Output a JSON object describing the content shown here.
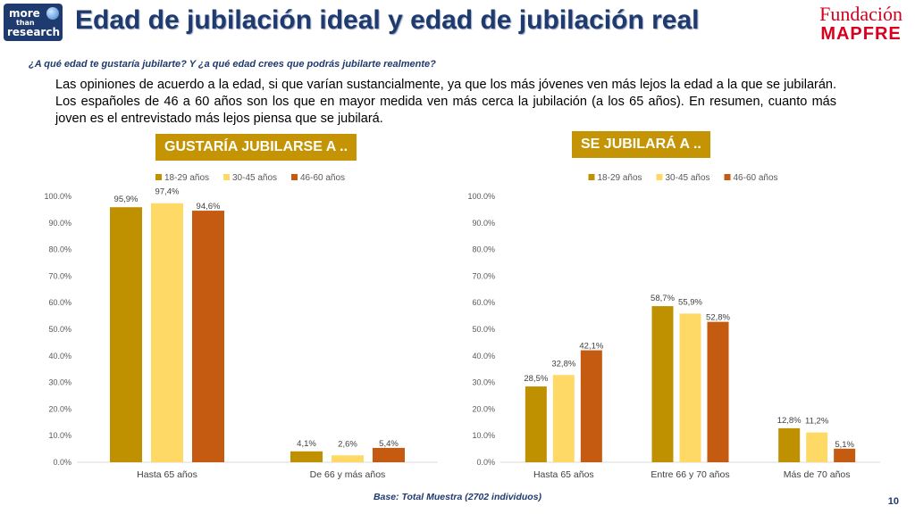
{
  "header": {
    "logo_left": {
      "line1": "more",
      "line2": "than",
      "line3": "research"
    },
    "title": "Edad de jubilación ideal y edad de jubilación real",
    "brand": {
      "line1": "Fundación",
      "line2": "MAPFRE",
      "color": "#d8001f"
    }
  },
  "subtitle": "¿A qué edad te gustaría jubilarte? Y ¿a qué edad crees que podrás jubilarte realmente?",
  "paragraph": "Las opiniones de acuerdo a la edad, si que varían sustancialmente, ya que los más jóvenes ven más lejos la edad a la que se jubilarán. Los españoles de 46 a 60 años son los que en mayor medida ven más cerca la jubilación (a los 65 años). En resumen, cuanto más joven es el entrevistado más lejos piensa que se jubilará.",
  "badges": {
    "left": "GUSTARÍA JUBILARSE A ..",
    "right": "SE JUBILARÁ A .."
  },
  "footer": "Base: Total Muestra (2702 individuos)",
  "page_number": "10",
  "colors": {
    "series1": "#bf9000",
    "series2": "#ffd966",
    "series3": "#c55a11",
    "badge": "#c49404",
    "title": "#1f3a6e"
  },
  "chart_data": [
    {
      "type": "bar",
      "categories": [
        "Hasta 65 años",
        "De 66 y más años"
      ],
      "series": [
        {
          "name": "18-29 años",
          "values": [
            95.9,
            4.1
          ],
          "labels": [
            "95,9%",
            "4,1%"
          ]
        },
        {
          "name": "30-45 años",
          "values": [
            97.4,
            2.6
          ],
          "labels": [
            "97,4%",
            "2,6%"
          ]
        },
        {
          "name": "46-60 años",
          "values": [
            94.6,
            5.4
          ],
          "labels": [
            "94,6%",
            "5,4%"
          ]
        }
      ],
      "yticks": [
        "0.0%",
        "10.0%",
        "20.0%",
        "30.0%",
        "40.0%",
        "50.0%",
        "60.0%",
        "70.0%",
        "80.0%",
        "90.0%",
        "100.0%"
      ],
      "ylim": [
        0,
        100
      ],
      "legend": "top",
      "grid": false
    },
    {
      "type": "bar",
      "categories": [
        "Hasta 65 años",
        "Entre 66 y 70 años",
        "Más de 70 años"
      ],
      "series": [
        {
          "name": "18-29 años",
          "values": [
            28.5,
            58.7,
            12.8
          ],
          "labels": [
            "28,5%",
            "58,7%",
            "12,8%"
          ]
        },
        {
          "name": "30-45 años",
          "values": [
            32.8,
            55.9,
            11.2
          ],
          "labels": [
            "32,8%",
            "55,9%",
            "11,2%"
          ]
        },
        {
          "name": "46-60 años",
          "values": [
            42.1,
            52.8,
            5.1
          ],
          "labels": [
            "42,1%",
            "52,8%",
            "5,1%"
          ]
        }
      ],
      "yticks": [
        "0.0%",
        "10.0%",
        "20.0%",
        "30.0%",
        "40.0%",
        "50.0%",
        "60.0%",
        "70.0%",
        "80.0%",
        "90.0%",
        "100.0%"
      ],
      "ylim": [
        0,
        100
      ],
      "legend": "top",
      "grid": false
    }
  ]
}
